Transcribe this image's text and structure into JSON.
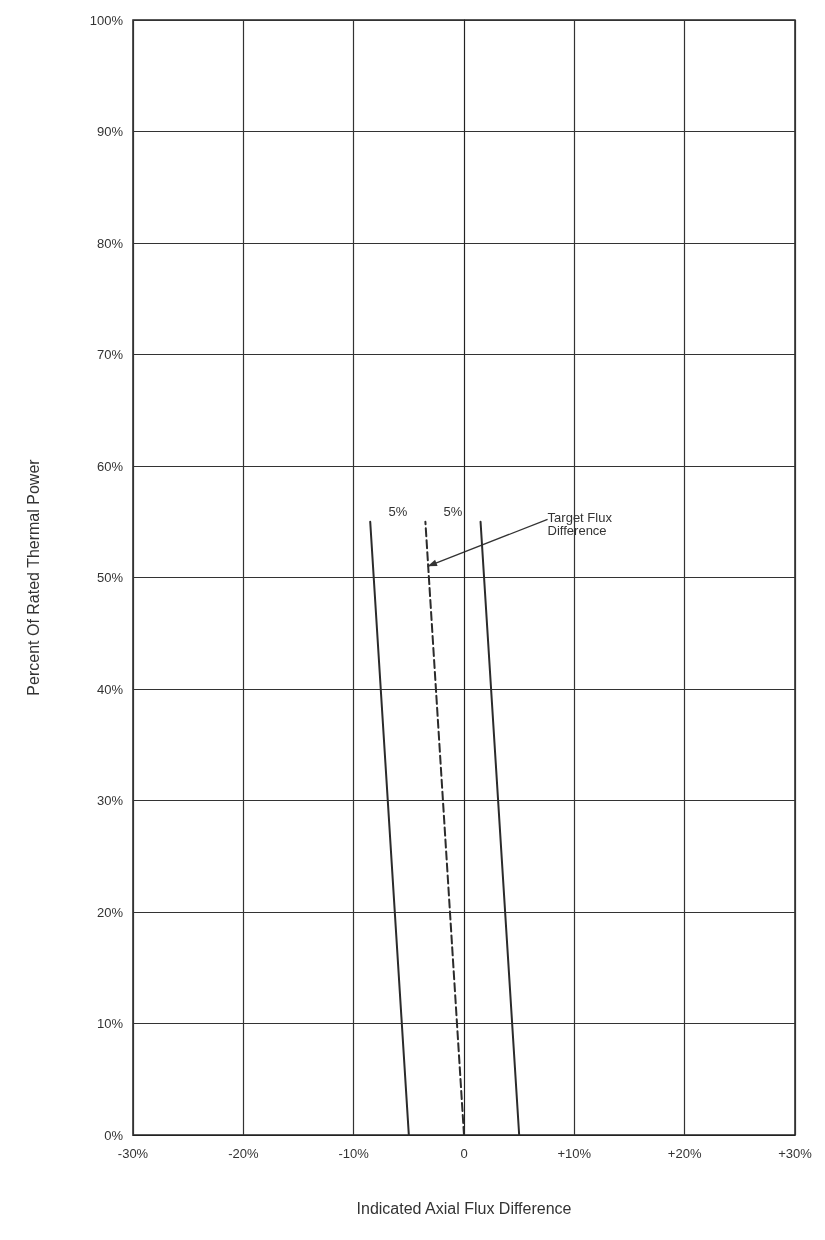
{
  "chart_data": {
    "type": "line",
    "xlabel": "Indicated Axial Flux Difference",
    "ylabel": "Percent Of Rated Thermal Power",
    "xlim": [
      -30,
      30
    ],
    "xticks": [
      {
        "value": -30,
        "label": "-30%"
      },
      {
        "value": -20,
        "label": "-20%"
      },
      {
        "value": -10,
        "label": "-10%"
      },
      {
        "value": 0,
        "label": "0"
      },
      {
        "value": 10,
        "label": "+10%"
      },
      {
        "value": 20,
        "label": "+20%"
      },
      {
        "value": 30,
        "label": "+30%"
      }
    ],
    "ylim": [
      0,
      100
    ],
    "yticks": [
      {
        "value": 0,
        "label": "0%"
      },
      {
        "value": 10,
        "label": "10%"
      },
      {
        "value": 20,
        "label": "20%"
      },
      {
        "value": 30,
        "label": "30%"
      },
      {
        "value": 40,
        "label": "40%"
      },
      {
        "value": 50,
        "label": "50%"
      },
      {
        "value": 60,
        "label": "60%"
      },
      {
        "value": 70,
        "label": "70%"
      },
      {
        "value": 80,
        "label": "80%"
      },
      {
        "value": 90,
        "label": "90%"
      },
      {
        "value": 100,
        "label": "100%"
      }
    ],
    "grid": true,
    "marker": "none",
    "series": [
      {
        "color": "#2b2b2b",
        "line_style": "solid",
        "x": [
          -5,
          -8.5
        ],
        "values": [
          0,
          55
        ]
      },
      {
        "color": "#2b2b2b",
        "line_style": "dashed",
        "x": [
          0,
          -3.5
        ],
        "values": [
          0,
          55
        ]
      },
      {
        "color": "#2b2b2b",
        "line_style": "solid",
        "x": [
          5,
          1.5
        ],
        "values": [
          0,
          55
        ]
      }
    ],
    "annotations": [
      "5%",
      "5%",
      {
        "text": "Target Flux Difference",
        "x": -3.3,
        "y": 51
      }
    ]
  }
}
